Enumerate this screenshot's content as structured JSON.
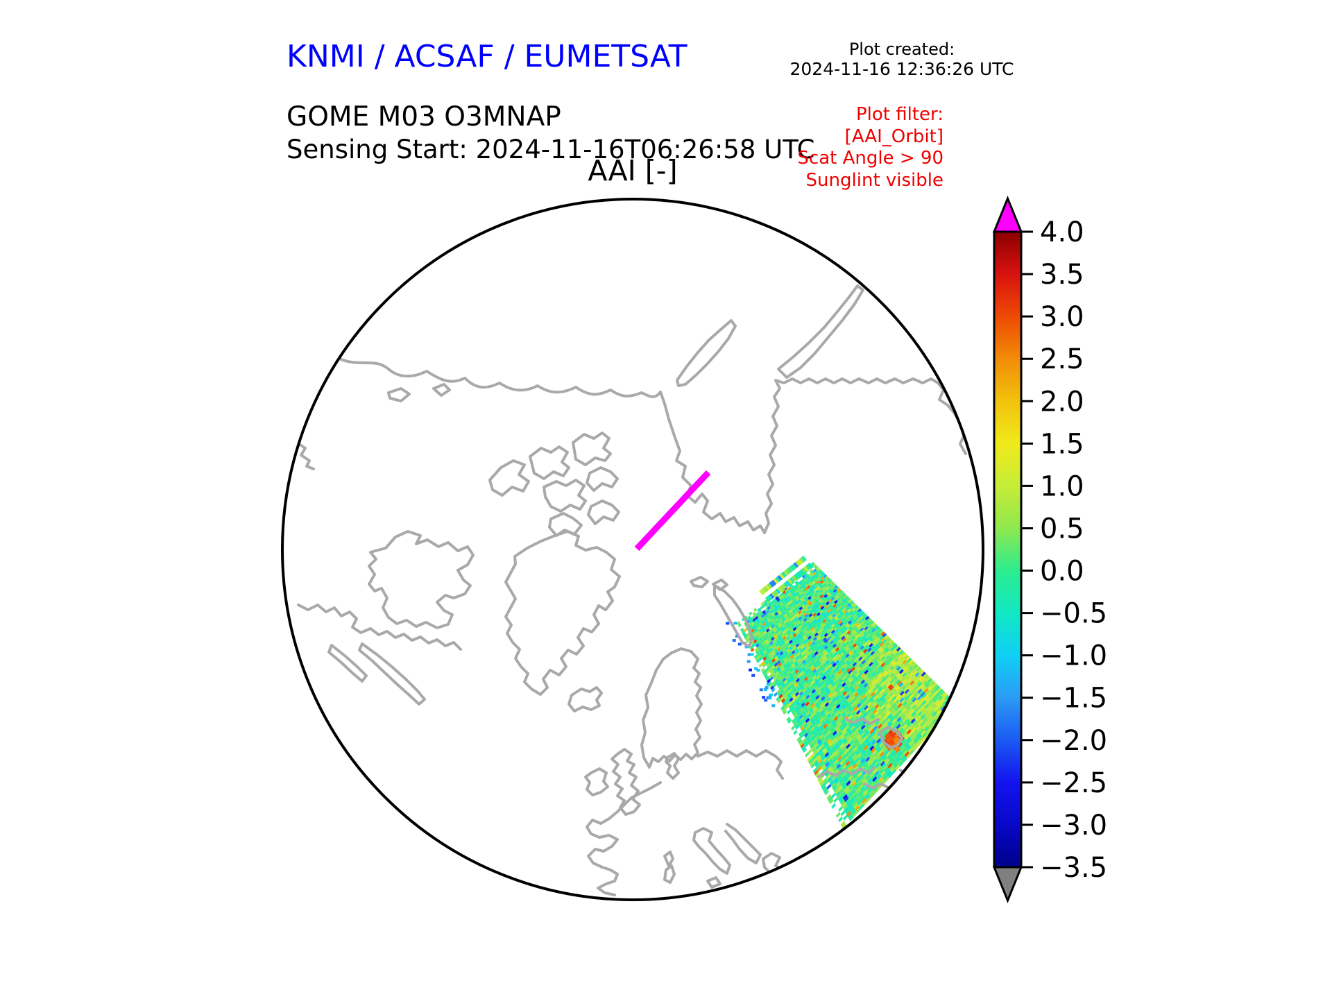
{
  "header": {
    "title": "KNMI / ACSAF / EUMETSAT",
    "title_color": "#0000ff",
    "created_label": "Plot created:",
    "created_value": "2024-11-16 12:36:26 UTC"
  },
  "product": {
    "line1": "GOME M03 O3MNAP",
    "line2": "Sensing Start: 2024-11-16T06:26:58 UTC"
  },
  "filter_note": {
    "color": "#ee0000",
    "lines": [
      "Plot filter:",
      "[AAI_Orbit]",
      "Scat Angle > 90",
      "Sunglint visible"
    ]
  },
  "map": {
    "title": "AAI [-]",
    "coastline_color": "#a9a9a9",
    "boundary_color": "#000000",
    "orbit_track_color": "#ff00ff"
  },
  "colorbar": {
    "vmin": -3.5,
    "vmax": 4.0,
    "ticks": [
      "4.0",
      "3.5",
      "3.0",
      "2.5",
      "2.0",
      "1.5",
      "1.0",
      "0.5",
      "0.0",
      "−0.5",
      "−1.0",
      "−1.5",
      "−2.0",
      "−2.5",
      "−3.0",
      "−3.5"
    ],
    "tick_values": [
      4.0,
      3.5,
      3.0,
      2.5,
      2.0,
      1.5,
      1.0,
      0.5,
      0.0,
      -0.5,
      -1.0,
      -1.5,
      -2.0,
      -2.5,
      -3.0,
      -3.5
    ],
    "over_color": "#ff00ff",
    "under_color": "#808080",
    "stops": [
      {
        "v": -3.5,
        "c": "#00008b"
      },
      {
        "v": -3.0,
        "c": "#0808c8"
      },
      {
        "v": -2.5,
        "c": "#1313f0"
      },
      {
        "v": -2.0,
        "c": "#1b5af2"
      },
      {
        "v": -1.5,
        "c": "#2b9bf5"
      },
      {
        "v": -1.0,
        "c": "#0fd0f5"
      },
      {
        "v": -0.5,
        "c": "#12e8c4"
      },
      {
        "v": 0.0,
        "c": "#2cec8e"
      },
      {
        "v": 0.5,
        "c": "#8fe84e"
      },
      {
        "v": 1.0,
        "c": "#c6ec38"
      },
      {
        "v": 1.5,
        "c": "#f0ea1a"
      },
      {
        "v": 2.0,
        "c": "#f2c20d"
      },
      {
        "v": 2.5,
        "c": "#f28c08"
      },
      {
        "v": 3.0,
        "c": "#ee4a04"
      },
      {
        "v": 3.5,
        "c": "#d81210"
      },
      {
        "v": 4.0,
        "c": "#8b0000"
      }
    ]
  },
  "chart_data": {
    "type": "heatmap",
    "title": "AAI [-]",
    "projection": "north polar stereographic, Greenwich meridian at bottom",
    "colorbar": {
      "label": "AAI [-]",
      "range": [
        -3.5,
        4.0
      ],
      "tick_step": 0.5,
      "tick_labels": [
        "4.0",
        "3.5",
        "3.0",
        "2.5",
        "2.0",
        "1.5",
        "1.0",
        "0.5",
        "0.0",
        "−0.5",
        "−1.0",
        "−1.5",
        "−2.0",
        "−2.5",
        "−3.0",
        "−3.5"
      ],
      "over_arrow_color": "magenta",
      "under_arrow_color": "gray",
      "orientation": "vertical, right of map"
    },
    "layers": [
      {
        "name": "map-boundary",
        "shape": "circle",
        "color": "#000000"
      },
      {
        "name": "coastlines",
        "color": "#a9a9a9",
        "regions_visible": [
          "Siberia",
          "Novaya Zemlya",
          "New Siberian Islands",
          "Chukotka",
          "Alaska",
          "Canadian Arctic Archipelago",
          "Greenland",
          "Iceland",
          "Scandinavia",
          "British Isles",
          "Western Europe",
          "Italy",
          "Balkans",
          "Black Sea"
        ]
      },
      {
        "name": "orbit-track-highlight",
        "color": "#ff00ff",
        "description": "short thick diagonal ground-track segment just north of the pole, running SW to NE"
      },
      {
        "name": "aai-swath",
        "description": "single descending GOME-2 swath over NE Europe / western Russia down to the Black Sea, clipped by map circle at lower right; two detached narrow scan-line stripes at its northern end",
        "typical_value_range": [
          -1.0,
          1.5
        ],
        "dominant_colors": "green / cyan with yellow patch toward Europe",
        "speckle_extremes": [
          -2.5,
          3.0
        ],
        "notable_feature": "small red-orange hotspot near Sea of Azov"
      }
    ]
  }
}
